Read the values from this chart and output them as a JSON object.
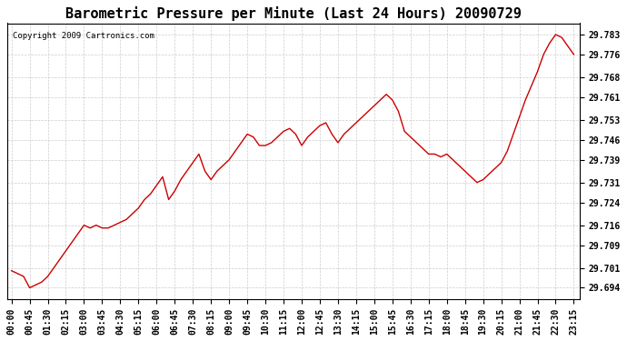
{
  "title": "Barometric Pressure per Minute (Last 24 Hours) 20090729",
  "copyright": "Copyright 2009 Cartronics.com",
  "line_color": "#cc0000",
  "background_color": "#ffffff",
  "grid_color": "#cccccc",
  "yticks": [
    29.694,
    29.701,
    29.709,
    29.716,
    29.724,
    29.731,
    29.739,
    29.746,
    29.753,
    29.761,
    29.768,
    29.776,
    29.783
  ],
  "ylim": [
    29.69,
    29.787
  ],
  "xtick_labels": [
    "00:00",
    "00:45",
    "01:30",
    "02:15",
    "03:00",
    "03:45",
    "04:30",
    "05:15",
    "06:00",
    "06:45",
    "07:30",
    "08:15",
    "09:00",
    "09:45",
    "10:30",
    "11:15",
    "12:00",
    "12:45",
    "13:30",
    "14:15",
    "15:00",
    "15:45",
    "16:30",
    "17:15",
    "18:00",
    "18:45",
    "19:30",
    "20:15",
    "21:00",
    "21:45",
    "22:30",
    "23:15"
  ],
  "x_values": [
    0,
    45,
    90,
    135,
    180,
    225,
    270,
    315,
    360,
    405,
    450,
    495,
    540,
    585,
    630,
    675,
    720,
    765,
    810,
    855,
    900,
    945,
    990,
    1035,
    1080,
    1125,
    1170,
    1215,
    1260,
    1305,
    1350,
    1395
  ],
  "data_x": [
    0,
    15,
    30,
    45,
    60,
    75,
    90,
    105,
    120,
    135,
    150,
    165,
    180,
    195,
    210,
    225,
    240,
    255,
    270,
    285,
    300,
    315,
    330,
    345,
    360,
    375,
    390,
    405,
    420,
    435,
    450,
    465,
    480,
    495,
    510,
    525,
    540,
    555,
    570,
    585,
    600,
    615,
    630,
    645,
    660,
    675,
    690,
    705,
    720,
    735,
    750,
    765,
    780,
    795,
    810,
    825,
    840,
    855,
    870,
    885,
    900,
    915,
    930,
    945,
    960,
    975,
    990,
    1005,
    1020,
    1035,
    1050,
    1065,
    1080,
    1095,
    1110,
    1125,
    1140,
    1155,
    1170,
    1185,
    1200,
    1215,
    1230,
    1245,
    1260,
    1275,
    1290,
    1305,
    1320,
    1335,
    1350,
    1365,
    1380,
    1395
  ],
  "data_y": [
    29.7,
    29.699,
    29.698,
    29.694,
    29.695,
    29.696,
    29.698,
    29.701,
    29.704,
    29.707,
    29.71,
    29.713,
    29.716,
    29.715,
    29.716,
    29.715,
    29.715,
    29.716,
    29.717,
    29.718,
    29.72,
    29.722,
    29.725,
    29.727,
    29.73,
    29.733,
    29.725,
    29.728,
    29.732,
    29.735,
    29.738,
    29.741,
    29.735,
    29.732,
    29.735,
    29.737,
    29.739,
    29.742,
    29.745,
    29.748,
    29.747,
    29.744,
    29.744,
    29.745,
    29.747,
    29.749,
    29.75,
    29.748,
    29.744,
    29.747,
    29.749,
    29.751,
    29.752,
    29.748,
    29.745,
    29.748,
    29.75,
    29.752,
    29.754,
    29.756,
    29.758,
    29.76,
    29.762,
    29.76,
    29.756,
    29.749,
    29.747,
    29.745,
    29.743,
    29.741,
    29.741,
    29.74,
    29.741,
    29.739,
    29.737,
    29.735,
    29.733,
    29.731,
    29.732,
    29.734,
    29.736,
    29.738,
    29.742,
    29.748,
    29.754,
    29.76,
    29.765,
    29.77,
    29.776,
    29.78,
    29.783,
    29.782,
    29.779,
    29.776
  ]
}
